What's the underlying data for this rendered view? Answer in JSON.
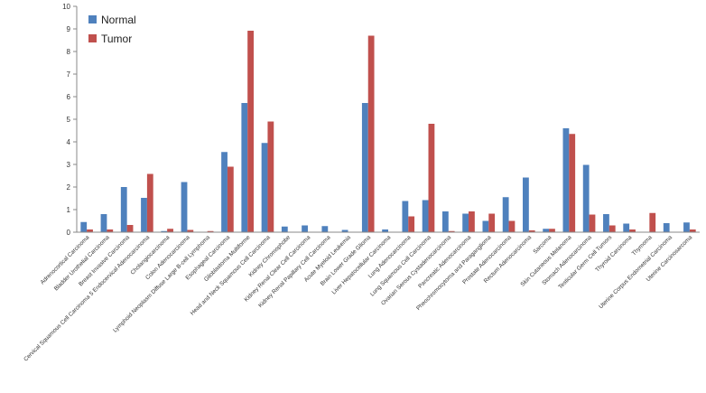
{
  "chart_data": {
    "type": "bar",
    "categories": [
      "Adrenocortical Carcinoma",
      "Bladder Urothelial Carcinoma",
      "Breast Invasive Carcinoma",
      "Cervical Squamous Cell Carcinoma 5 Endocervical Adenocarcinoma",
      "Cholangiocarcinoma",
      "Colon Adenocarcinoma",
      "Lymphoid Neoplasm Diffuse Large B-cell Lymphoma",
      "Esophageal Carcinoma",
      "Glioblastoma Multiforme",
      "Head and Neck Squamous Cell Carcinoma",
      "Kidney Chromophobe",
      "Kidney Renal Clear Cell Carcinoma",
      "Kidney Renal Papillary Cell Carcinoma",
      "Acute Myeloid Leukemia",
      "Brain Lower Grade Glioma",
      "Liver Hepatocellular Carcinoma",
      "Lung Adenocarcinoma",
      "Lung Squamous Cell Carcinoma",
      "Ovarian Serous Cystadenocarcinoma",
      "Pancreatic Adenocarcinoma",
      "Pheochromocytoma and Paraganglioma",
      "Prostate Adenocarcinoma",
      "Rectum Adenocarcinoma",
      "Sarcoma",
      "Skin Cutaneous Melanoma",
      "Stomach Adenocarcinoma",
      "Testicular Germ Cell Tumors",
      "Thyroid Carcinoma",
      "Thymoma",
      "Uterine Corpus Endometrial Carcinoma",
      "Uterine Carcinosarcoma"
    ],
    "series": [
      {
        "name": "Normal",
        "color": "#4F81BD",
        "values": [
          0.45,
          0.8,
          2.0,
          1.52,
          0.05,
          2.22,
          0.0,
          3.55,
          5.72,
          3.95,
          0.25,
          0.3,
          0.27,
          0.1,
          5.72,
          0.12,
          1.38,
          1.42,
          0.92,
          0.82,
          0.5,
          1.55,
          2.42,
          0.15,
          4.6,
          2.98,
          0.8,
          0.38,
          0.0,
          0.4,
          0.43
        ]
      },
      {
        "name": "Tumor",
        "color": "#C0504D",
        "values": [
          0.12,
          0.12,
          0.32,
          2.58,
          0.15,
          0.1,
          0.05,
          2.9,
          8.92,
          4.9,
          0.02,
          0.02,
          0.02,
          0.02,
          8.7,
          0.02,
          0.7,
          4.8,
          0.05,
          0.92,
          0.82,
          0.5,
          0.08,
          0.15,
          4.35,
          0.78,
          0.3,
          0.12,
          0.85,
          0.02,
          0.12
        ]
      }
    ],
    "title": "",
    "xlabel": "",
    "ylabel": "",
    "ylim": [
      0,
      10
    ],
    "yticks": [
      "0",
      "1",
      "2",
      "3",
      "4",
      "5",
      "6",
      "7",
      "8",
      "9",
      "10"
    ],
    "grid": false,
    "legend": "top-left"
  }
}
